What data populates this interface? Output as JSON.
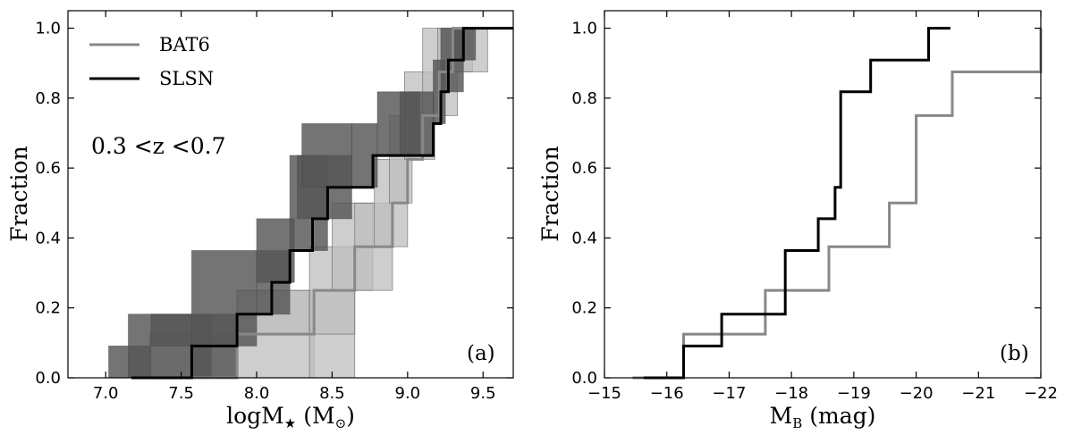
{
  "chart_data": [
    {
      "type": "line",
      "panel_label": "(a)",
      "xlabel": "logM",
      "xlabel_star": "★",
      "xlabel_unit_open": "(M",
      "xlabel_unit_sub": "⊙",
      "xlabel_unit_close": ")",
      "ylabel": "Fraction",
      "xlim": [
        6.75,
        9.7
      ],
      "ylim": [
        0.0,
        1.05
      ],
      "xticks": [
        "7.0",
        "7.5",
        "8.0",
        "8.5",
        "9.0",
        "9.5"
      ],
      "yticks": [
        "0.0",
        "0.2",
        "0.4",
        "0.6",
        "0.8",
        "1.0"
      ],
      "annotation": "0.3 <z <0.7",
      "legend": {
        "position": "top-left",
        "entries": [
          {
            "label": "BAT6",
            "color": "#888888"
          },
          {
            "label": "SLSN",
            "color": "#000000"
          }
        ]
      },
      "series": [
        {
          "name": "BAT6",
          "color": "#888888",
          "band_color": "#bdbdbd",
          "step_x": [
            7.29,
            7.87,
            8.38,
            8.65,
            8.9,
            9.0,
            9.1,
            9.21,
            9.3,
            9.4
          ],
          "step_y": [
            0.0,
            0.125,
            0.25,
            0.375,
            0.5,
            0.625,
            0.75,
            0.875,
            1.0,
            1.0
          ],
          "bands": [
            {
              "x0": 7.29,
              "x1": 7.87,
              "y0": 0.0,
              "y1": 0.125
            },
            {
              "x0": 7.87,
              "x1": 8.38,
              "y0": 0.0,
              "y1": 0.25
            },
            {
              "x0": 7.87,
              "x1": 8.38,
              "y0": 0.125,
              "y1": 0.25
            },
            {
              "x0": 8.35,
              "x1": 8.65,
              "y0": 0.0,
              "y1": 0.25
            },
            {
              "x0": 8.35,
              "x1": 8.65,
              "y0": 0.125,
              "y1": 0.375
            },
            {
              "x0": 8.5,
              "x1": 8.77,
              "y0": 0.25,
              "y1": 0.5
            },
            {
              "x0": 8.65,
              "x1": 8.9,
              "y0": 0.25,
              "y1": 0.5
            },
            {
              "x0": 8.78,
              "x1": 9.0,
              "y0": 0.375,
              "y1": 0.625
            },
            {
              "x0": 8.88,
              "x1": 9.03,
              "y0": 0.5,
              "y1": 0.75
            },
            {
              "x0": 8.98,
              "x1": 9.18,
              "y0": 0.625,
              "y1": 0.875
            },
            {
              "x0": 9.1,
              "x1": 9.33,
              "y0": 0.75,
              "y1": 1.0
            },
            {
              "x0": 9.2,
              "x1": 9.43,
              "y0": 0.875,
              "y1": 1.0
            },
            {
              "x0": 9.3,
              "x1": 9.53,
              "y0": 0.875,
              "y1": 1.0
            }
          ]
        },
        {
          "name": "SLSN",
          "color": "#000000",
          "band_color": "#555555",
          "step_x": [
            7.17,
            7.57,
            7.87,
            8.1,
            8.22,
            8.37,
            8.47,
            8.77,
            9.17,
            9.22,
            9.27,
            9.37,
            9.7
          ],
          "step_y": [
            0.0,
            0.091,
            0.182,
            0.273,
            0.364,
            0.455,
            0.545,
            0.636,
            0.727,
            0.818,
            0.909,
            1.0,
            1.0
          ],
          "bands": [
            {
              "x0": 7.02,
              "x1": 7.3,
              "y0": 0.0,
              "y1": 0.091
            },
            {
              "x0": 7.15,
              "x1": 7.7,
              "y0": 0.0,
              "y1": 0.182
            },
            {
              "x0": 7.3,
              "x1": 7.87,
              "y0": 0.091,
              "y1": 0.182
            },
            {
              "x0": 7.57,
              "x1": 7.87,
              "y0": 0.0,
              "y1": 0.091
            },
            {
              "x0": 7.57,
              "x1": 8.0,
              "y0": 0.091,
              "y1": 0.364
            },
            {
              "x0": 8.0,
              "x1": 8.22,
              "y0": 0.182,
              "y1": 0.364
            },
            {
              "x0": 8.0,
              "x1": 8.25,
              "y0": 0.273,
              "y1": 0.455
            },
            {
              "x0": 8.22,
              "x1": 8.47,
              "y0": 0.364,
              "y1": 0.636
            },
            {
              "x0": 8.27,
              "x1": 8.63,
              "y0": 0.455,
              "y1": 0.636
            },
            {
              "x0": 8.3,
              "x1": 8.63,
              "y0": 0.545,
              "y1": 0.727
            },
            {
              "x0": 8.63,
              "x1": 8.8,
              "y0": 0.545,
              "y1": 0.727
            },
            {
              "x0": 8.8,
              "x1": 9.08,
              "y0": 0.636,
              "y1": 0.818
            },
            {
              "x0": 8.95,
              "x1": 9.17,
              "y0": 0.636,
              "y1": 0.818
            },
            {
              "x0": 9.17,
              "x1": 9.25,
              "y0": 0.727,
              "y1": 0.909
            },
            {
              "x0": 9.22,
              "x1": 9.37,
              "y0": 0.818,
              "y1": 1.0
            },
            {
              "x0": 9.3,
              "x1": 9.45,
              "y0": 0.909,
              "y1": 1.0
            }
          ]
        }
      ]
    },
    {
      "type": "line",
      "panel_label": "(b)",
      "xlabel": "M",
      "xlabel_sub": "B",
      "xlabel_unit": "(mag)",
      "ylabel": "Fraction",
      "xlim": [
        -15.0,
        -22.0
      ],
      "ylim": [
        0.0,
        1.05
      ],
      "xticks": [
        "−15",
        "−16",
        "−17",
        "−18",
        "−19",
        "−20",
        "−21",
        "−22"
      ],
      "yticks": [
        "0.0",
        "0.2",
        "0.4",
        "0.6",
        "0.8",
        "1.0"
      ],
      "series": [
        {
          "name": "BAT6",
          "color": "#888888",
          "step_x": [
            -15.45,
            -16.27,
            -17.58,
            -18.6,
            -19.57,
            -20.0,
            -20.58,
            -22.0
          ],
          "step_y": [
            0.0,
            0.125,
            0.25,
            0.375,
            0.5,
            0.75,
            0.875,
            1.0
          ]
        },
        {
          "name": "SLSN",
          "color": "#000000",
          "step_x": [
            -15.63,
            -16.27,
            -16.88,
            -17.9,
            -18.43,
            -18.7,
            -18.79,
            -19.27,
            -20.2,
            -20.55
          ],
          "step_y": [
            0.0,
            0.091,
            0.182,
            0.364,
            0.455,
            0.545,
            0.818,
            0.909,
            1.0,
            1.0
          ]
        }
      ]
    }
  ]
}
